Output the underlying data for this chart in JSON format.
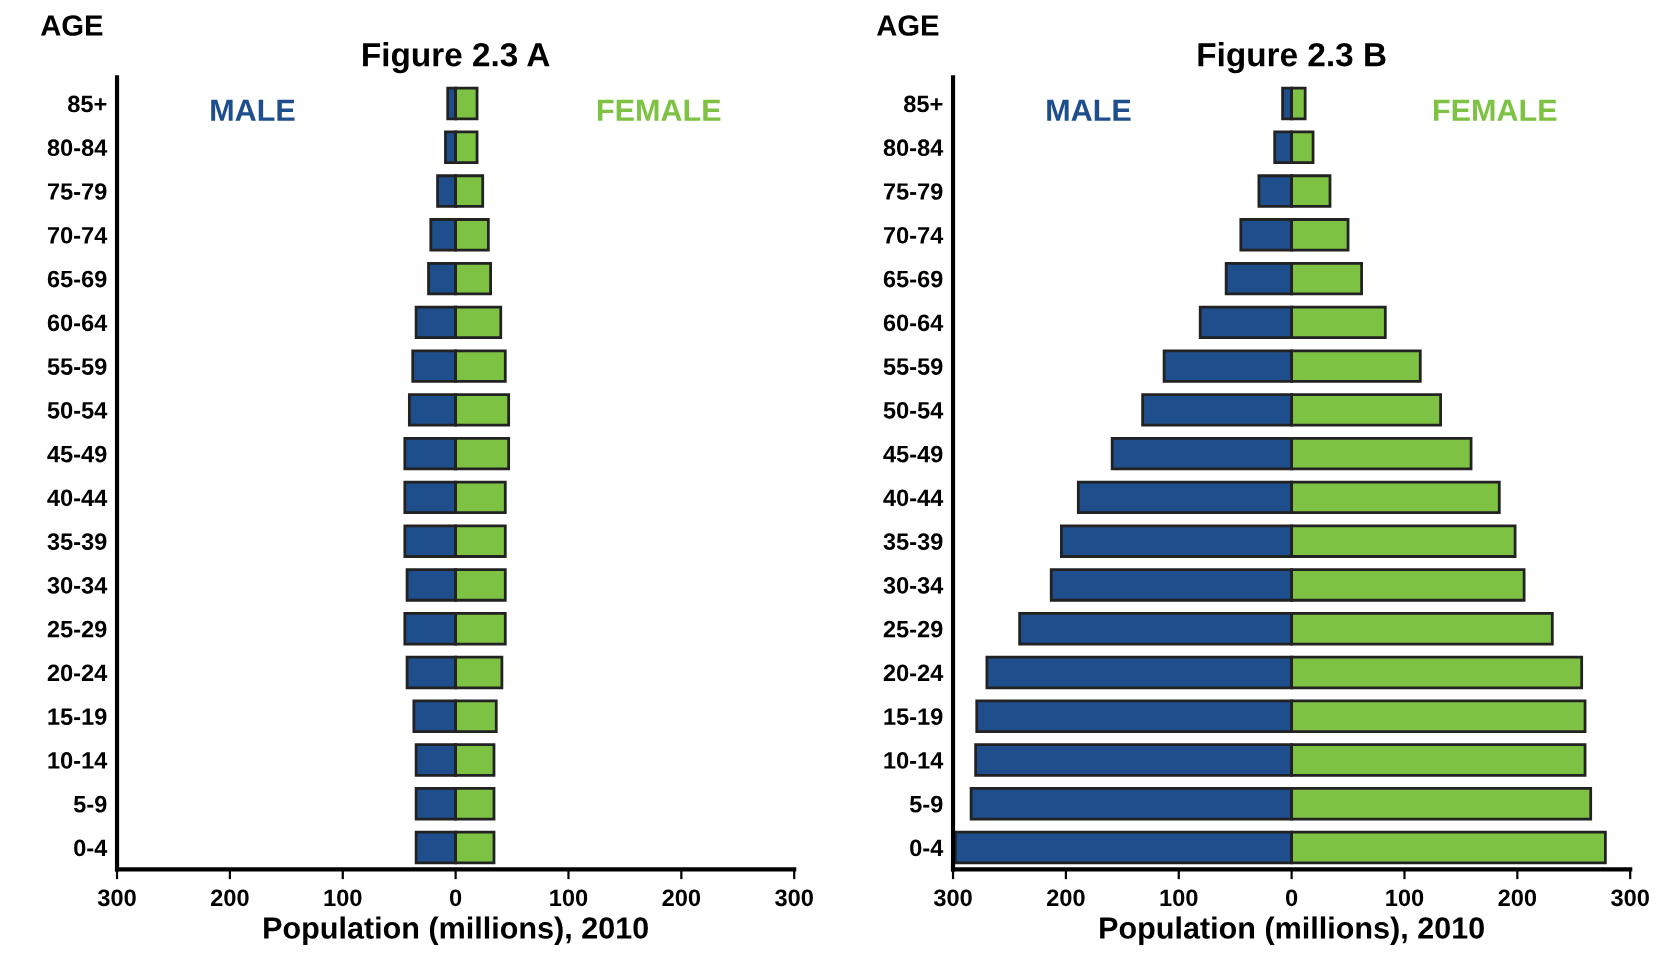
{
  "chart_data": [
    {
      "type": "bar",
      "orientation": "horizontal",
      "stacked": true,
      "title": "Figure 2.3 A",
      "xlabel": "Population (millions), 2010",
      "ylabel": "AGE",
      "categories": [
        "85+",
        "80-84",
        "75-79",
        "70-74",
        "65-69",
        "60-64",
        "55-59",
        "50-54",
        "45-49",
        "40-44",
        "35-39",
        "30-34",
        "25-29",
        "20-24",
        "15-19",
        "10-14",
        "5-9",
        "0-4"
      ],
      "series": [
        {
          "name": "MALE",
          "color": "#1f4e8c",
          "values": [
            -7,
            -9,
            -16,
            -22,
            -24,
            -35,
            -38,
            -41,
            -45,
            -45,
            -45,
            -43,
            -45,
            -43,
            -37,
            -35,
            -35,
            -35
          ]
        },
        {
          "name": "FEMALE",
          "color": "#7dc242",
          "values": [
            19,
            19,
            24,
            29,
            31,
            40,
            44,
            47,
            47,
            44,
            44,
            44,
            44,
            41,
            36,
            34,
            34,
            34
          ]
        }
      ],
      "xlim": [
        -300,
        300
      ],
      "xticks": [
        {
          "value": -300,
          "label": "300"
        },
        {
          "value": -200,
          "label": "200"
        },
        {
          "value": -100,
          "label": "100"
        },
        0,
        100,
        200,
        300
      ],
      "grid": false,
      "legend": false
    },
    {
      "type": "bar",
      "orientation": "horizontal",
      "stacked": true,
      "title": "Figure 2.3 B",
      "xlabel": "Population (millions), 2010",
      "ylabel": "AGE",
      "categories": [
        "85+",
        "80-84",
        "75-79",
        "70-74",
        "65-69",
        "60-64",
        "55-59",
        "50-54",
        "45-49",
        "40-44",
        "35-39",
        "30-34",
        "25-29",
        "20-24",
        "15-19",
        "10-14",
        "5-9",
        "0-4"
      ],
      "series": [
        {
          "name": "MALE",
          "color": "#1f4e8c",
          "values": [
            -8,
            -15,
            -29,
            -45,
            -58,
            -81,
            -113,
            -132,
            -159,
            -189,
            -204,
            -213,
            -241,
            -270,
            -279,
            -280,
            -284,
            -298
          ]
        },
        {
          "name": "FEMALE",
          "color": "#7dc242",
          "values": [
            12,
            19,
            34,
            50,
            62,
            83,
            114,
            132,
            159,
            184,
            198,
            206,
            231,
            257,
            260,
            260,
            265,
            278
          ]
        }
      ],
      "xlim": [
        -300,
        300
      ],
      "xticks": [
        {
          "value": -300,
          "label": "300"
        },
        {
          "value": -200,
          "label": "200"
        },
        {
          "value": -100,
          "label": "100"
        },
        0,
        100,
        200,
        300
      ],
      "grid": false,
      "legend": false
    }
  ]
}
